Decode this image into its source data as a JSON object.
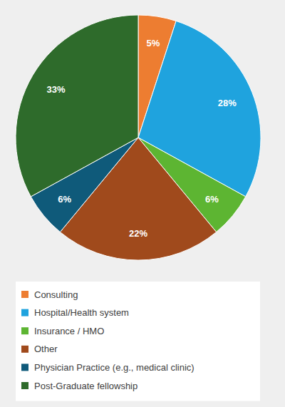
{
  "chart_data": {
    "type": "pie",
    "categories": [
      "Consulting",
      "Hospital/Health system",
      "Insurance / HMO",
      "Other",
      "Physician Practice (e.g., medical clinic)",
      "Post-Graduate fellowship"
    ],
    "values": [
      5,
      28,
      6,
      22,
      6,
      33
    ],
    "value_labels": [
      "5%",
      "28%",
      "6%",
      "22%",
      "6%",
      "33%"
    ],
    "colors": [
      "#ed7d31",
      "#1fa3de",
      "#5db532",
      "#a04a1c",
      "#0f5a7a",
      "#2e6b2b"
    ],
    "data_labels": true,
    "legend": "bottom"
  }
}
